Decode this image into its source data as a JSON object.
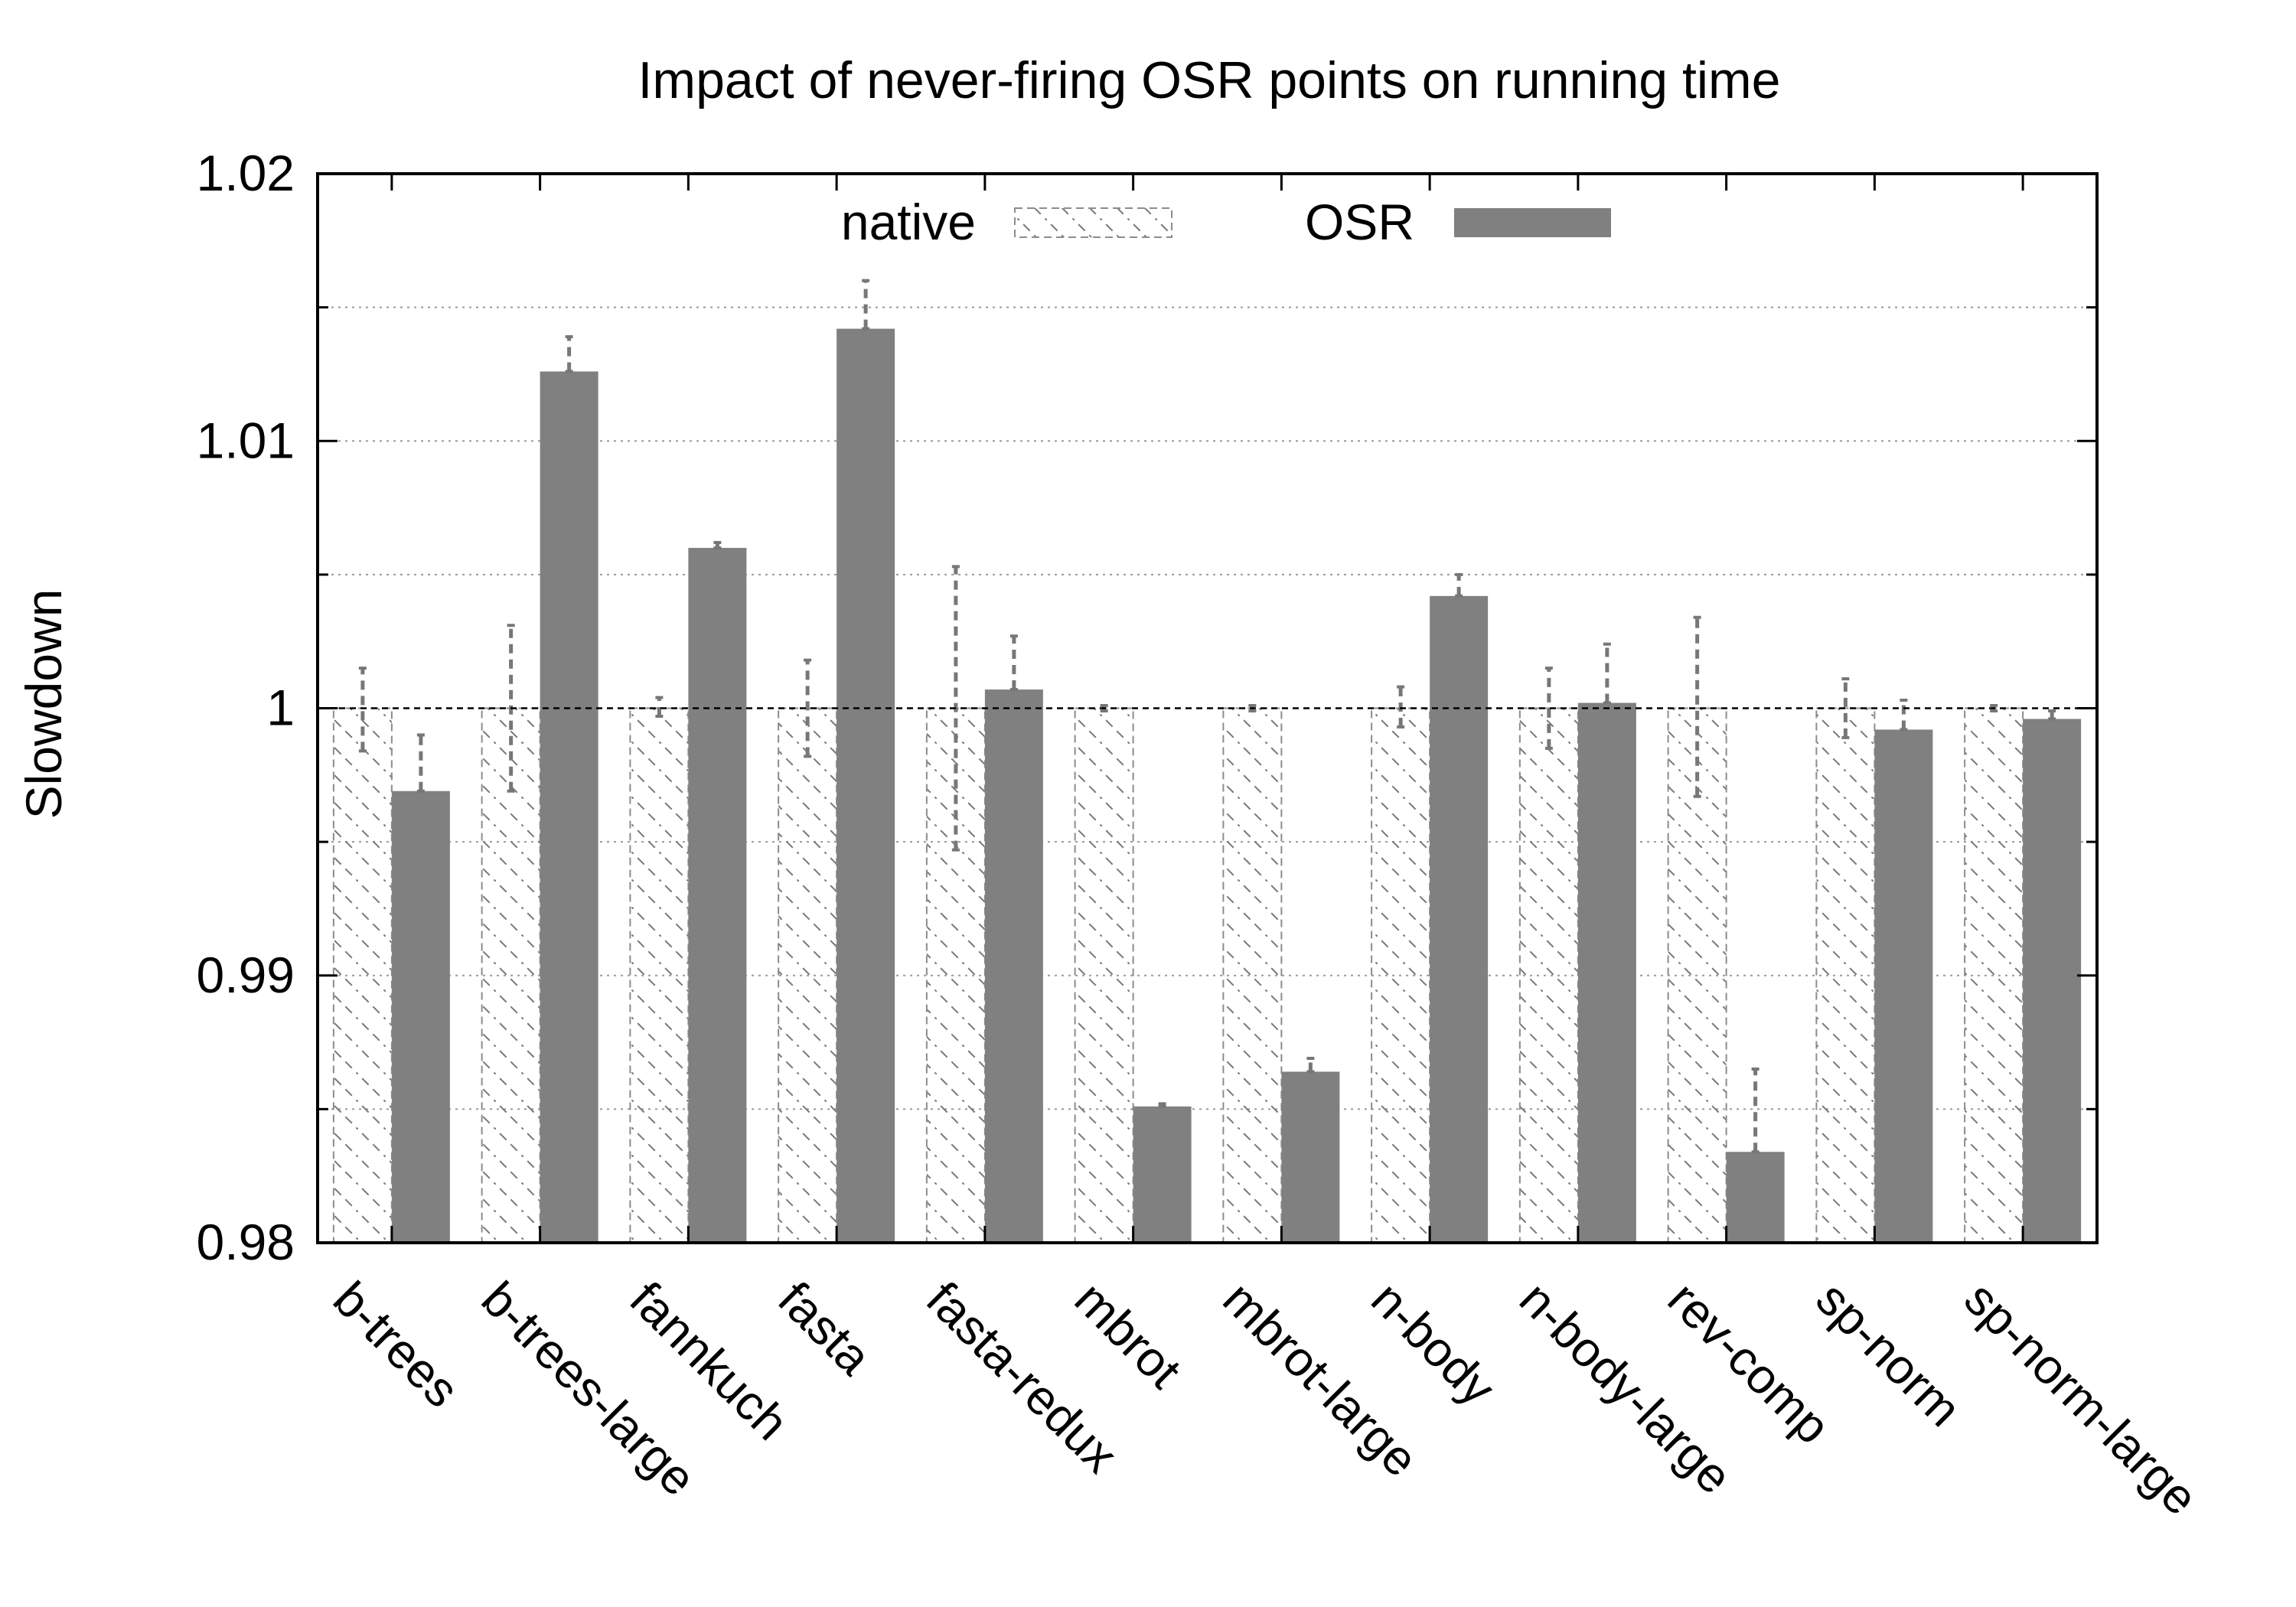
{
  "chart_data": {
    "type": "bar",
    "title": "Impact of never-firing OSR points on running time",
    "xlabel": "",
    "ylabel": "Slowdown",
    "ylim": [
      0.98,
      1.02
    ],
    "yticks": [
      "0.98",
      "0.99",
      "1",
      "1.01",
      "1.02"
    ],
    "grid": true,
    "legend_position": "top-center",
    "categories": [
      "b-trees",
      "b-trees-large",
      "fannkuch",
      "fasta",
      "fasta-redux",
      "mbrot",
      "mbrot-large",
      "n-body",
      "n-body-large",
      "rev-comp",
      "sp-norm",
      "sp-norm-large"
    ],
    "series": [
      {
        "name": "native",
        "style": "hatched",
        "values": [
          1.0,
          1.0,
          1.0,
          1.0,
          1.0,
          1.0,
          1.0,
          1.0,
          1.0,
          1.0,
          1.0,
          1.0
        ],
        "error_low": [
          0.9984,
          0.9969,
          0.9997,
          0.9982,
          0.9947,
          0.9999,
          0.9999,
          0.9993,
          0.9985,
          0.9967,
          0.9989,
          0.9999
        ],
        "error_high": [
          1.0015,
          1.0031,
          1.0004,
          1.0018,
          1.0053,
          1.0001,
          1.0001,
          1.0008,
          1.0015,
          1.0034,
          1.0011,
          1.0001
        ]
      },
      {
        "name": "OSR",
        "style": "solid",
        "values": [
          0.9969,
          1.0126,
          1.006,
          1.0142,
          1.0007,
          0.9851,
          0.9864,
          1.0042,
          1.0002,
          0.9834,
          0.9992,
          0.9996
        ],
        "error_low": [
          0.9969,
          1.0126,
          1.006,
          1.0142,
          1.0007,
          0.9851,
          0.9864,
          1.0042,
          1.0002,
          0.9834,
          0.9992,
          0.9996
        ],
        "error_high": [
          0.999,
          1.0139,
          1.0062,
          1.016,
          1.0027,
          0.9852,
          0.9869,
          1.005,
          1.0024,
          0.9865,
          1.0003,
          0.9999
        ]
      }
    ]
  },
  "colors": {
    "osr_fill": "#808080",
    "native_stroke": "#8c8c8c",
    "axis": "#000000",
    "grid": "#9a9a9a"
  }
}
